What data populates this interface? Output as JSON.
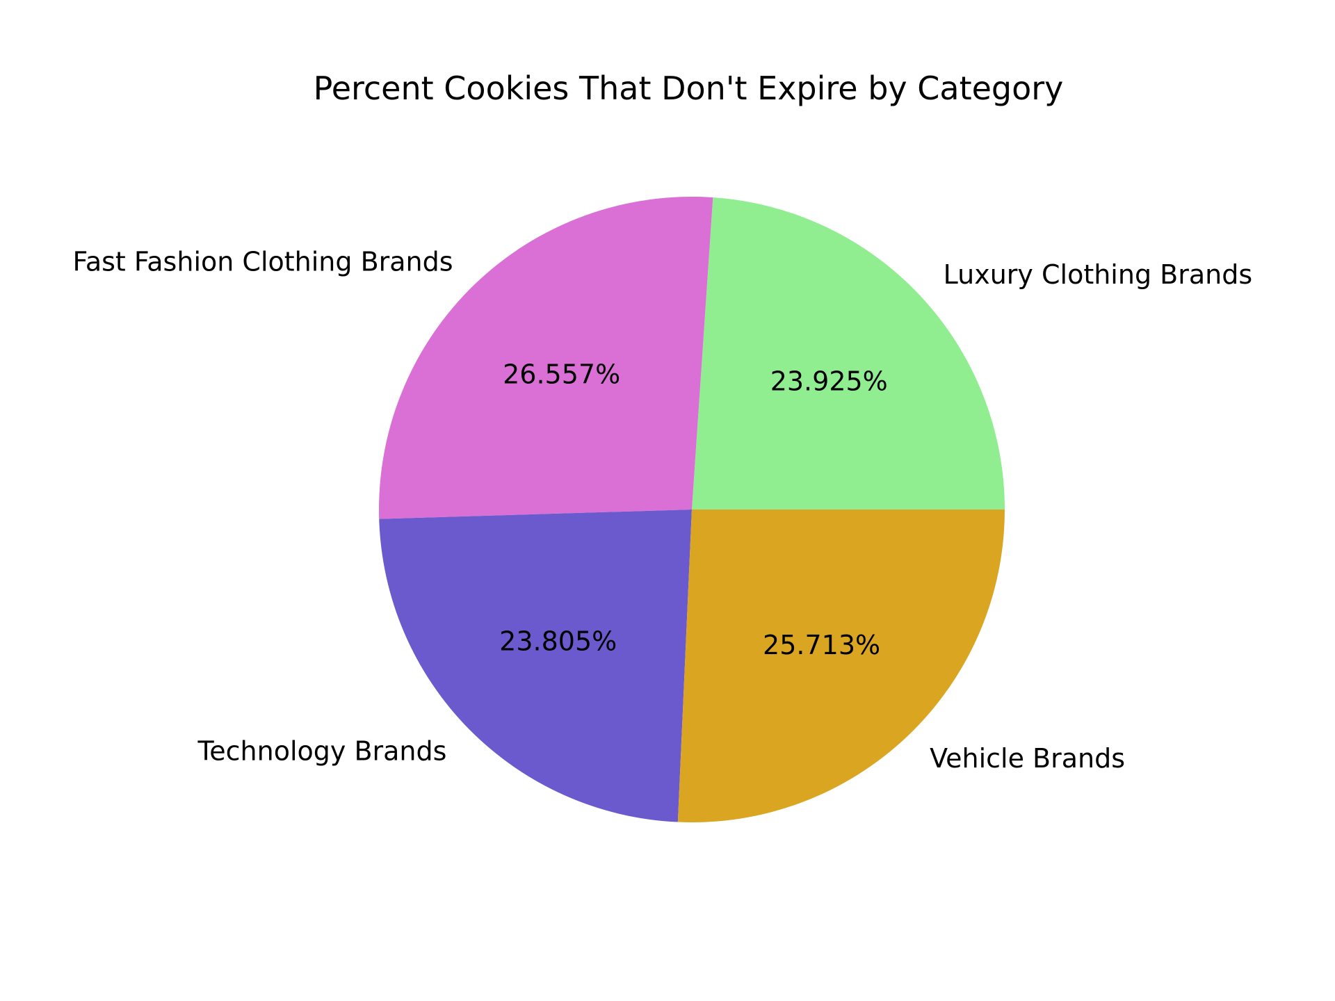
{
  "chart_data": {
    "type": "pie",
    "title": "Percent Cookies That Don't Expire by Category",
    "slices": [
      {
        "label": "Luxury Clothing Brands",
        "value": 23.925,
        "pct_label": "23.925%",
        "color": "#90ee90"
      },
      {
        "label": "Fast Fashion Clothing Brands",
        "value": 26.557,
        "pct_label": "26.557%",
        "color": "#da70d6"
      },
      {
        "label": "Technology Brands",
        "value": 23.805,
        "pct_label": "23.805%",
        "color": "#6a5acd"
      },
      {
        "label": "Vehicle Brands",
        "value": 25.713,
        "pct_label": "25.713%",
        "color": "#daa520"
      }
    ],
    "start_angle_deg": 0,
    "direction": "counterclockwise",
    "legend": "none"
  }
}
